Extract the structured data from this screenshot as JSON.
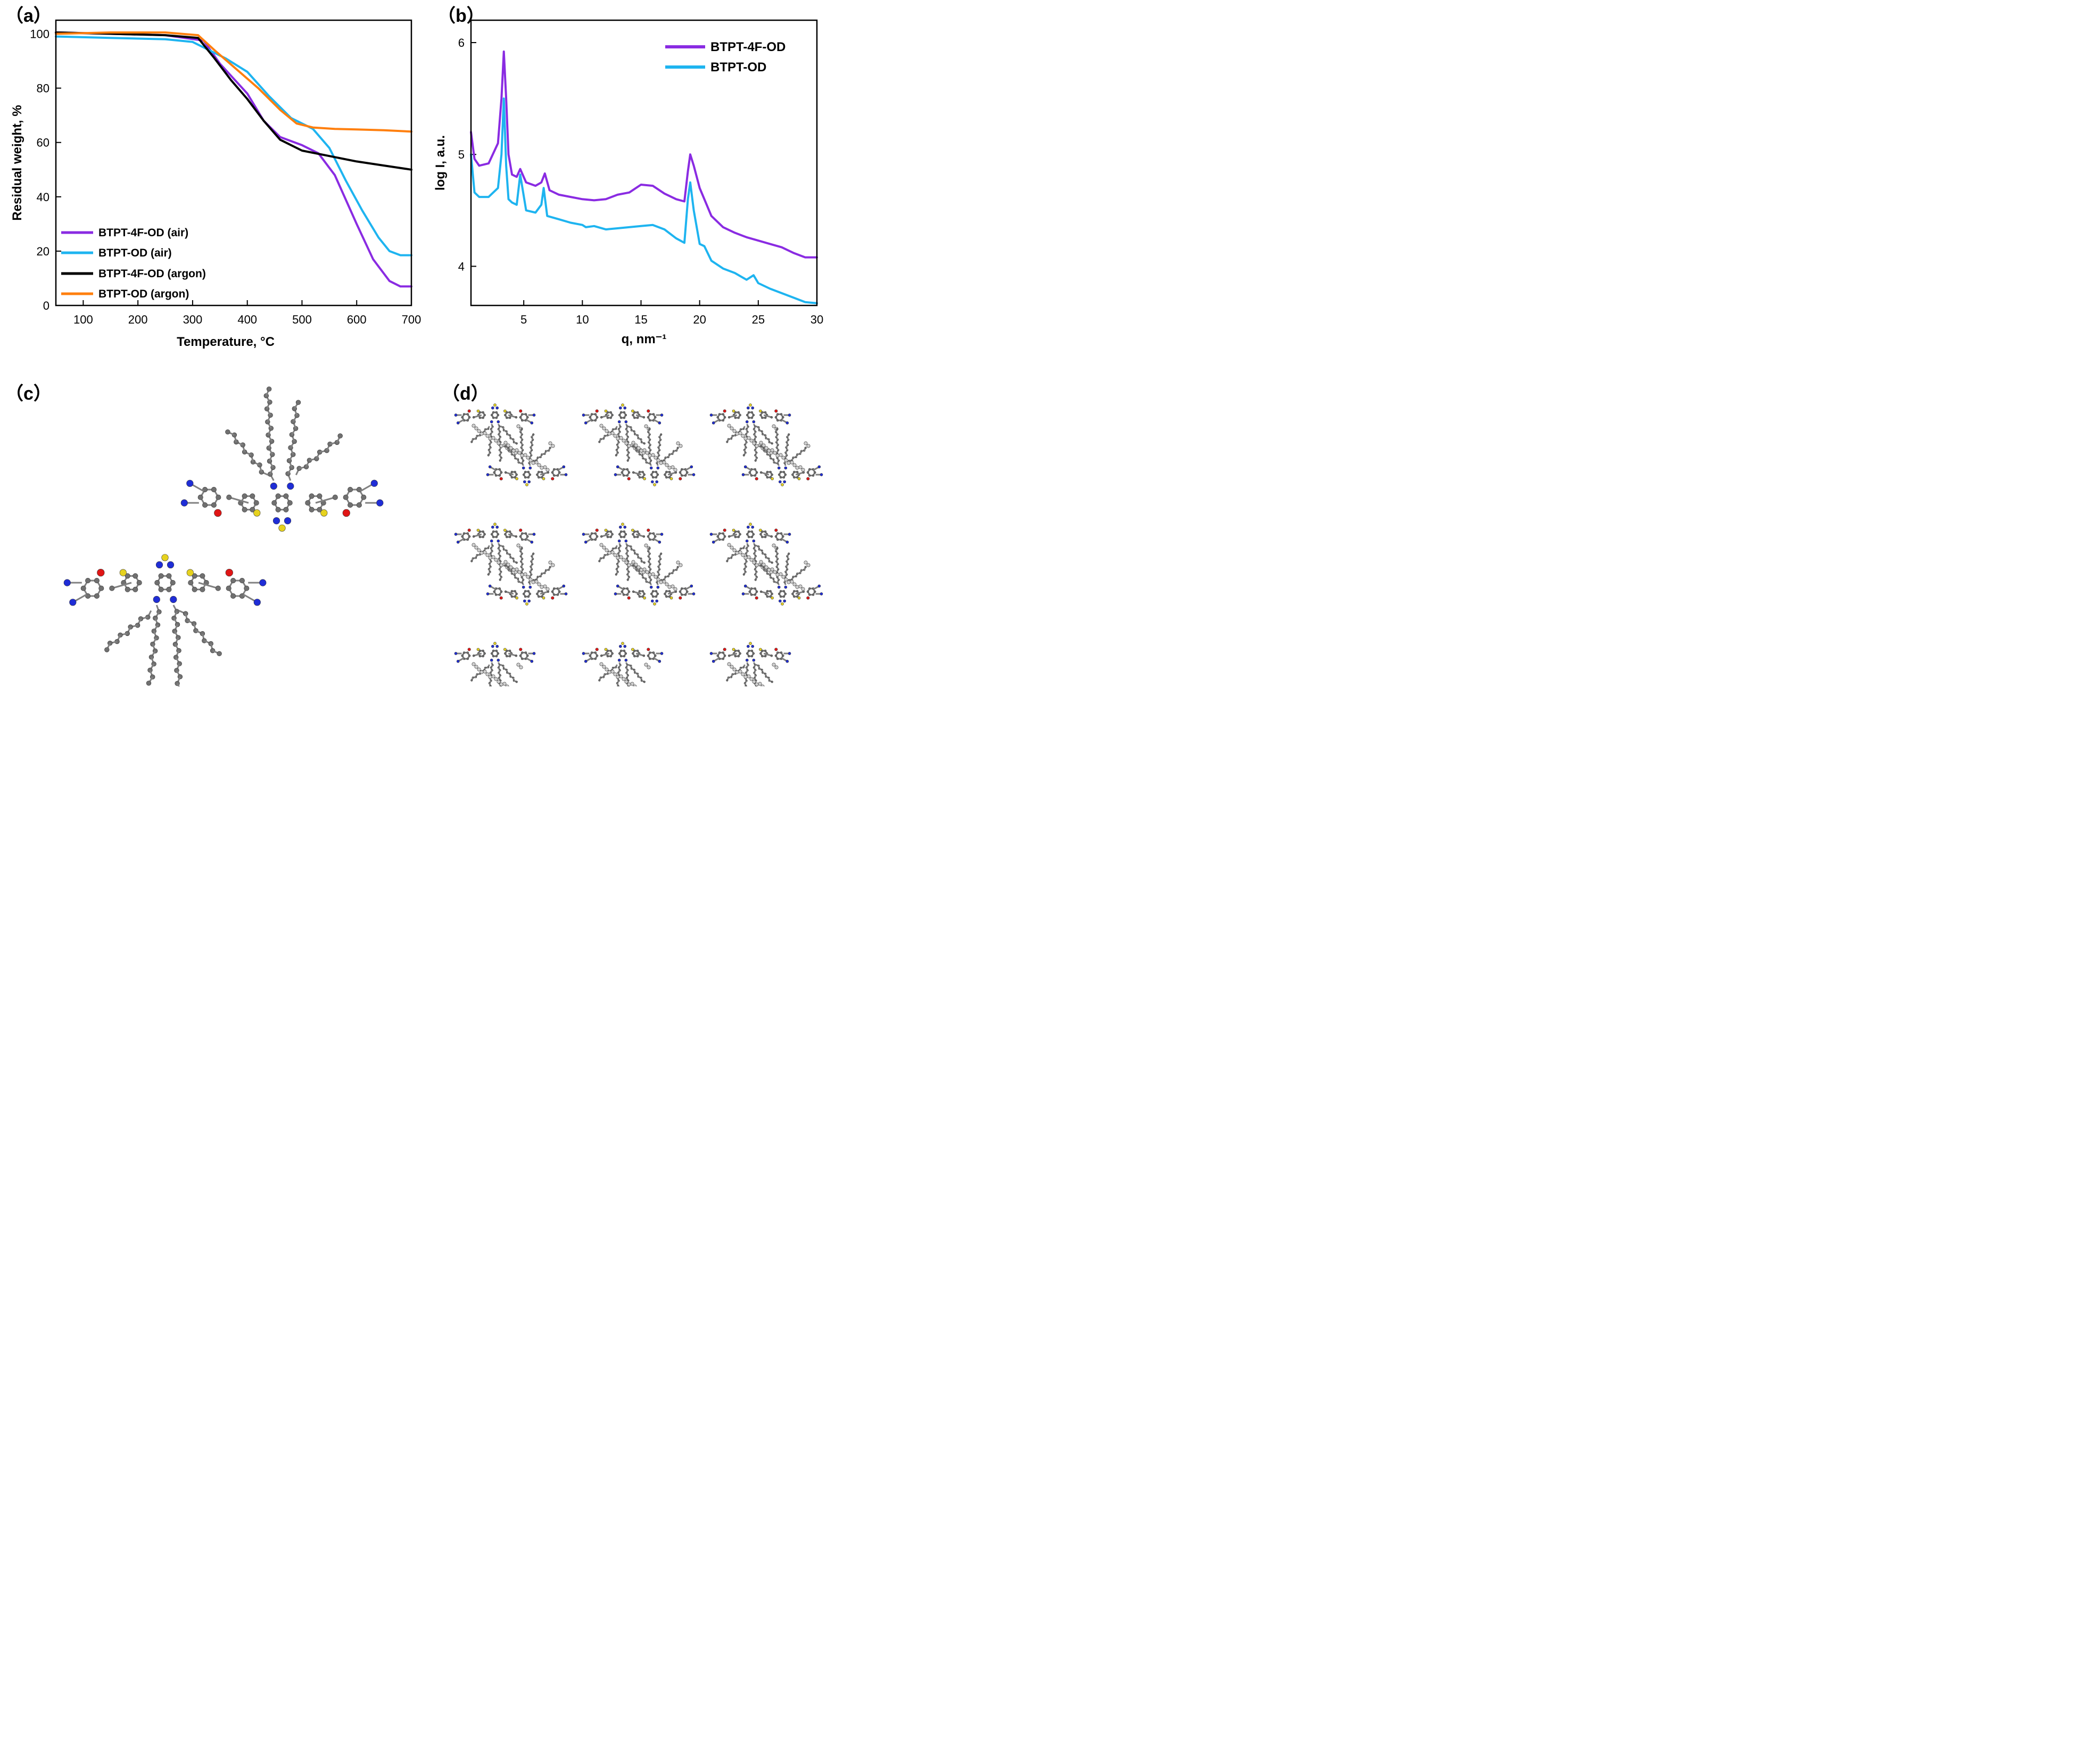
{
  "panels": {
    "a": {
      "label": "（a）"
    },
    "b": {
      "label": "（b）"
    },
    "c": {
      "label": "（c）"
    },
    "d": {
      "label": "（d）"
    }
  },
  "colors": {
    "purple": "#8a2be2",
    "cyan": "#1eb4f0",
    "black": "#000000",
    "orange": "#ff7f0e",
    "atom_carbon": "#707070",
    "atom_nitrogen": "#1f2dd6",
    "atom_sulfur": "#e6d21e",
    "atom_oxygen": "#e01515",
    "atom_hydrogen": "#d0d0d0"
  },
  "chart_data": [
    {
      "id": "a",
      "type": "line",
      "xlabel": "Temperature, °C",
      "ylabel": "Residual weight, %",
      "xlim": [
        50,
        700
      ],
      "ylim": [
        0,
        105
      ],
      "xticks": [
        100,
        200,
        300,
        400,
        500,
        600,
        700
      ],
      "yticks": [
        0,
        20,
        40,
        60,
        80,
        100
      ],
      "legend_position": "bottom-left",
      "series": [
        {
          "name": "BTPT-4F-OD (air)",
          "color": "#8a2be2",
          "x": [
            50,
            150,
            250,
            320,
            350,
            400,
            430,
            460,
            500,
            530,
            560,
            600,
            630,
            660,
            680,
            700
          ],
          "y": [
            100.5,
            100,
            99.5,
            97.5,
            89,
            78,
            68,
            62,
            59,
            56,
            48,
            30,
            17,
            9,
            7,
            7
          ]
        },
        {
          "name": "BTPT-OD (air)",
          "color": "#1eb4f0",
          "x": [
            50,
            150,
            250,
            300,
            330,
            360,
            400,
            440,
            480,
            520,
            550,
            580,
            610,
            640,
            660,
            680,
            700
          ],
          "y": [
            99,
            98.5,
            98,
            97,
            94,
            91,
            86,
            77,
            69,
            65,
            58,
            46,
            35,
            25,
            20,
            18.5,
            18.5
          ]
        },
        {
          "name": "BTPT-4F-OD (argon)",
          "color": "#000000",
          "x": [
            50,
            150,
            250,
            310,
            340,
            370,
            400,
            430,
            460,
            500,
            550,
            600,
            650,
            700
          ],
          "y": [
            100.5,
            100,
            99.5,
            98.5,
            91,
            83,
            76,
            68,
            61,
            57,
            55,
            53,
            51.5,
            50
          ]
        },
        {
          "name": "BTPT-OD (argon)",
          "color": "#ff7f0e",
          "x": [
            50,
            150,
            250,
            310,
            340,
            380,
            420,
            460,
            490,
            520,
            560,
            600,
            650,
            700
          ],
          "y": [
            100,
            100.5,
            100.5,
            99.5,
            94,
            87,
            80,
            72,
            67,
            65.5,
            65,
            64.8,
            64.5,
            64
          ]
        }
      ]
    },
    {
      "id": "b",
      "type": "line",
      "xlabel": "q, nm⁻¹",
      "ylabel": "log I, a.u.",
      "xlim": [
        0.5,
        30
      ],
      "ylim": [
        3.65,
        6.2
      ],
      "xticks": [
        5,
        10,
        15,
        20,
        25,
        30
      ],
      "yticks": [
        4,
        5,
        6
      ],
      "legend_position": "top-right",
      "series": [
        {
          "name": "BTPT-4F-OD",
          "color": "#8a2be2",
          "x": [
            0.5,
            0.8,
            1.2,
            2.0,
            2.8,
            3.1,
            3.3,
            3.5,
            3.7,
            4.0,
            4.4,
            4.7,
            5.2,
            6.0,
            6.5,
            6.8,
            7.2,
            8.0,
            9.0,
            10.0,
            11.0,
            12.0,
            13.0,
            14.0,
            15.0,
            16.0,
            17.0,
            18.0,
            18.7,
            19.0,
            19.2,
            19.5,
            20.0,
            21.0,
            22.0,
            23.0,
            24.0,
            25.0,
            26.0,
            27.0,
            28.0,
            29.0,
            30.0
          ],
          "y": [
            5.2,
            4.96,
            4.9,
            4.92,
            5.1,
            5.5,
            5.92,
            5.5,
            5.0,
            4.82,
            4.8,
            4.87,
            4.75,
            4.72,
            4.75,
            4.83,
            4.68,
            4.64,
            4.62,
            4.6,
            4.59,
            4.6,
            4.64,
            4.66,
            4.73,
            4.72,
            4.65,
            4.6,
            4.58,
            4.85,
            5.0,
            4.9,
            4.7,
            4.45,
            4.35,
            4.3,
            4.26,
            4.23,
            4.2,
            4.17,
            4.12,
            4.08,
            4.08
          ]
        },
        {
          "name": "BTPT-OD",
          "color": "#1eb4f0",
          "x": [
            0.5,
            0.8,
            1.2,
            2.0,
            2.8,
            3.1,
            3.3,
            3.5,
            3.7,
            4.0,
            4.4,
            4.7,
            5.2,
            6.0,
            6.5,
            6.7,
            7.0,
            8.0,
            9.0,
            10.0,
            10.3,
            11.0,
            12.0,
            13.0,
            14.0,
            15.0,
            16.0,
            17.0,
            18.0,
            18.7,
            19.0,
            19.2,
            19.5,
            20.0,
            20.4,
            21.0,
            22.0,
            23.0,
            24.0,
            24.6,
            25.0,
            26.0,
            27.0,
            28.0,
            29.0,
            30.0
          ],
          "y": [
            5.0,
            4.66,
            4.62,
            4.62,
            4.7,
            5.0,
            5.5,
            4.9,
            4.6,
            4.57,
            4.55,
            4.82,
            4.5,
            4.48,
            4.55,
            4.7,
            4.45,
            4.42,
            4.39,
            4.37,
            4.35,
            4.36,
            4.33,
            4.34,
            4.35,
            4.36,
            4.37,
            4.33,
            4.25,
            4.21,
            4.6,
            4.75,
            4.5,
            4.2,
            4.18,
            4.05,
            3.98,
            3.94,
            3.88,
            3.92,
            3.85,
            3.8,
            3.76,
            3.72,
            3.68,
            3.67
          ]
        }
      ]
    }
  ]
}
